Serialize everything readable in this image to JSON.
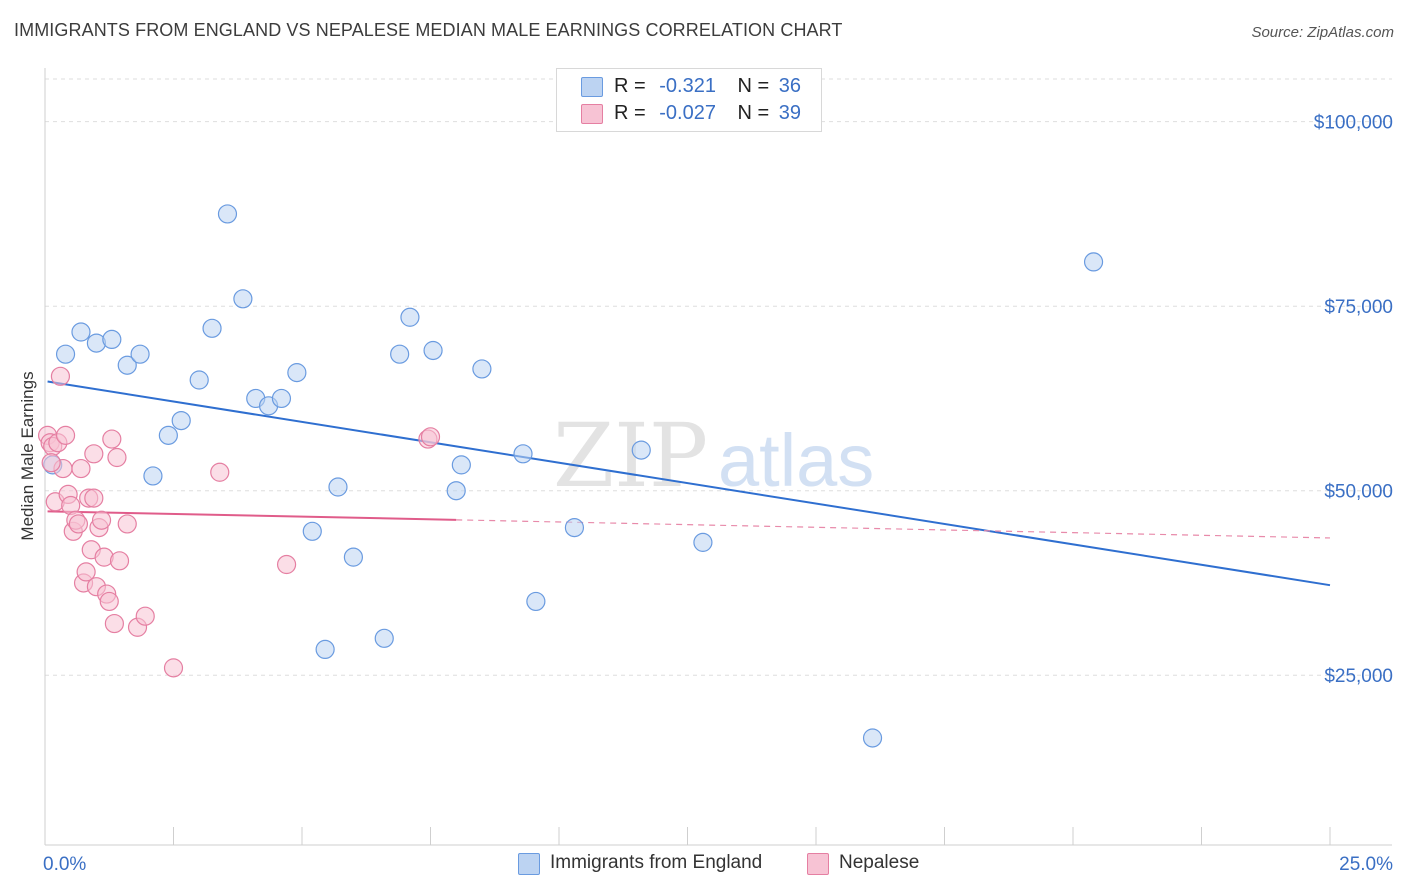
{
  "title": "IMMIGRANTS FROM ENGLAND VS NEPALESE MEDIAN MALE EARNINGS CORRELATION CHART",
  "source": "Source: ZipAtlas.com",
  "watermark": {
    "zip": "ZIP",
    "atlas": "atlas"
  },
  "legend": {
    "r_label": "R =",
    "n_label": "N =",
    "rows": [
      {
        "r": "-0.321",
        "n": "36"
      },
      {
        "r": "-0.027",
        "n": "39"
      }
    ]
  },
  "chart_data": {
    "type": "scatter",
    "xlabel": "",
    "ylabel": "Median Male Earnings",
    "xlim": [
      0,
      25
    ],
    "ylim": [
      2000,
      107000
    ],
    "x_tick_labels": [
      "0.0%",
      "25.0%"
    ],
    "y_ticks": [
      25000,
      50000,
      75000,
      100000
    ],
    "y_tick_labels": [
      "$25,000",
      "$50,000",
      "$75,000",
      "$100,000"
    ],
    "grid": true,
    "series": [
      {
        "name": "Immigrants from England",
        "color": "#6a9be0",
        "fill": "#bcd3f2",
        "points": [
          [
            0.15,
            53500
          ],
          [
            0.4,
            68500
          ],
          [
            0.7,
            71500
          ],
          [
            1.0,
            70000
          ],
          [
            1.3,
            70500
          ],
          [
            1.6,
            67000
          ],
          [
            1.85,
            68500
          ],
          [
            2.1,
            52000
          ],
          [
            2.4,
            57500
          ],
          [
            2.65,
            59500
          ],
          [
            3.0,
            65000
          ],
          [
            3.25,
            72000
          ],
          [
            3.55,
            87500
          ],
          [
            3.85,
            76000
          ],
          [
            4.1,
            62500
          ],
          [
            4.35,
            61500
          ],
          [
            4.6,
            62500
          ],
          [
            4.9,
            66000
          ],
          [
            5.2,
            44500
          ],
          [
            5.45,
            28500
          ],
          [
            5.7,
            50500
          ],
          [
            6.0,
            41000
          ],
          [
            6.6,
            30000
          ],
          [
            6.9,
            68500
          ],
          [
            7.1,
            73500
          ],
          [
            7.55,
            69000
          ],
          [
            8.0,
            50000
          ],
          [
            8.1,
            53500
          ],
          [
            8.5,
            66500
          ],
          [
            9.3,
            55000
          ],
          [
            9.55,
            35000
          ],
          [
            10.3,
            45000
          ],
          [
            11.6,
            55500
          ],
          [
            12.8,
            43000
          ],
          [
            16.1,
            16500
          ],
          [
            20.4,
            81000
          ]
        ],
        "trend": {
          "x_start": 0.05,
          "y_start": 64800,
          "x_end": 25.0,
          "y_end": 37200,
          "dashed_from": null
        }
      },
      {
        "name": "Nepalese",
        "color": "#e57fa2",
        "fill": "#f7c3d4",
        "points": [
          [
            0.05,
            57500
          ],
          [
            0.1,
            56500
          ],
          [
            0.15,
            56000
          ],
          [
            0.2,
            48500
          ],
          [
            0.25,
            56500
          ],
          [
            0.3,
            65500
          ],
          [
            0.35,
            53000
          ],
          [
            0.4,
            57500
          ],
          [
            0.45,
            49500
          ],
          [
            0.5,
            48000
          ],
          [
            0.55,
            44500
          ],
          [
            0.6,
            46000
          ],
          [
            0.65,
            45500
          ],
          [
            0.7,
            53000
          ],
          [
            0.75,
            37500
          ],
          [
            0.8,
            39000
          ],
          [
            0.85,
            49000
          ],
          [
            0.9,
            42000
          ],
          [
            0.95,
            55000
          ],
          [
            1.0,
            37000
          ],
          [
            1.05,
            45000
          ],
          [
            1.1,
            46000
          ],
          [
            1.15,
            41000
          ],
          [
            1.2,
            36000
          ],
          [
            1.25,
            35000
          ],
          [
            1.3,
            57000
          ],
          [
            1.35,
            32000
          ],
          [
            1.4,
            54500
          ],
          [
            1.45,
            40500
          ],
          [
            1.6,
            45500
          ],
          [
            1.8,
            31500
          ],
          [
            1.95,
            33000
          ],
          [
            2.5,
            26000
          ],
          [
            3.4,
            52500
          ],
          [
            4.7,
            40000
          ],
          [
            7.45,
            57000
          ],
          [
            7.5,
            57300
          ],
          [
            0.12,
            53800
          ],
          [
            0.95,
            49000
          ]
        ],
        "trend": {
          "x_start": 0.05,
          "y_start": 47200,
          "x_end": 25.0,
          "y_end": 43600,
          "dashed_from": 8.0
        }
      }
    ]
  },
  "bottom_legend": [
    "Immigrants from England",
    "Nepalese"
  ]
}
